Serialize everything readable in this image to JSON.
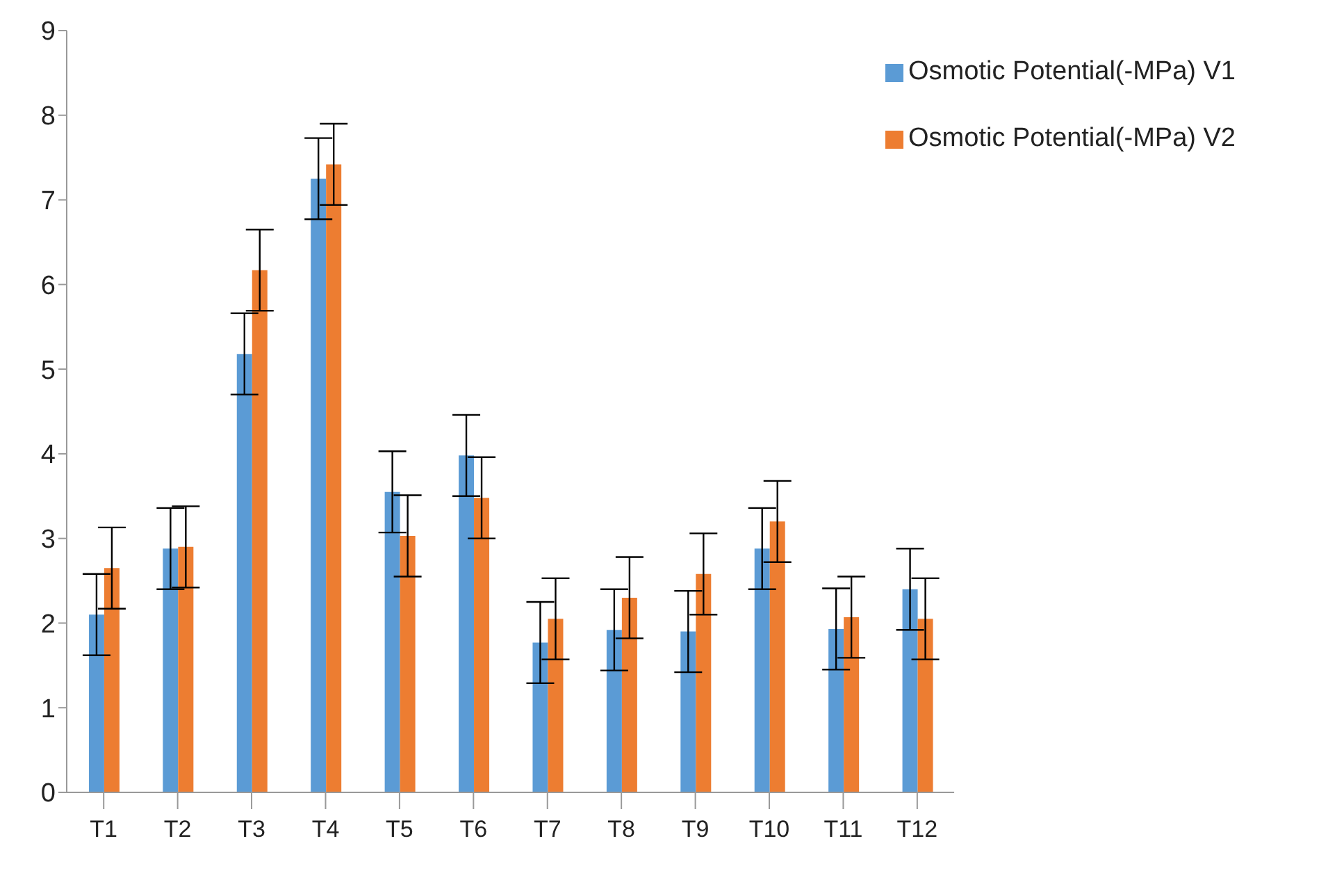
{
  "chart_data": {
    "type": "bar",
    "categories": [
      "T1",
      "T2",
      "T3",
      "T4",
      "T5",
      "T6",
      "T7",
      "T8",
      "T9",
      "T10",
      "T11",
      "T12"
    ],
    "series": [
      {
        "name": "Osmotic Potential(-MPa) V1",
        "color": "#5b9bd5",
        "values": [
          2.1,
          2.88,
          5.18,
          7.25,
          3.55,
          3.98,
          1.77,
          1.92,
          1.9,
          2.88,
          1.93,
          2.4
        ],
        "errors": [
          0.48,
          0.48,
          0.48,
          0.48,
          0.48,
          0.48,
          0.48,
          0.48,
          0.48,
          0.48,
          0.48,
          0.48
        ]
      },
      {
        "name": "Osmotic Potential(-MPa) V2",
        "color": "#ed7d31",
        "values": [
          2.65,
          2.9,
          6.17,
          7.42,
          3.03,
          3.48,
          2.05,
          2.3,
          2.58,
          3.2,
          2.07,
          2.05
        ],
        "errors": [
          0.48,
          0.48,
          0.48,
          0.48,
          0.48,
          0.48,
          0.48,
          0.48,
          0.48,
          0.48,
          0.48,
          0.48
        ]
      }
    ],
    "ylim": [
      0,
      9
    ],
    "yticks": [
      0,
      1,
      2,
      3,
      4,
      5,
      6,
      7,
      8,
      9
    ],
    "grid": false,
    "legend": "top right"
  }
}
